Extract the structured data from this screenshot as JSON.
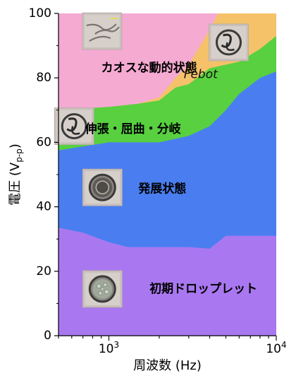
{
  "chart_data": {
    "type": "area",
    "xlabel": "周波数 (Hz)",
    "ylabel_main": "電圧 (V",
    "ylabel_sub": "p-p",
    "ylabel_close": ")",
    "xscale": "log",
    "xlim": [
      500,
      10000
    ],
    "ylim": [
      0,
      100
    ],
    "yticks": [
      0,
      20,
      40,
      60,
      80,
      100
    ],
    "xtick_labels": [
      {
        "value": 1000,
        "base": "10",
        "exp": "3"
      },
      {
        "value": 10000,
        "base": "10",
        "exp": "4"
      }
    ],
    "regions": [
      {
        "name": "初期ドロップレット",
        "color": "#a978f0",
        "label_at": [
          1750,
          14.5
        ],
        "upper": [
          [
            500,
            33.5
          ],
          [
            700,
            32
          ],
          [
            1000,
            29
          ],
          [
            1300,
            27.5
          ],
          [
            2000,
            27.5
          ],
          [
            3000,
            27.5
          ],
          [
            4000,
            27
          ],
          [
            5000,
            31
          ],
          [
            7000,
            31
          ],
          [
            10000,
            31
          ]
        ]
      },
      {
        "name": "発展状態",
        "color": "#4a7ef0",
        "label_at": [
          1500,
          45.5
        ],
        "upper": [
          [
            500,
            57.5
          ],
          [
            1000,
            60
          ],
          [
            1500,
            60
          ],
          [
            2000,
            60
          ],
          [
            3000,
            62
          ],
          [
            4000,
            65
          ],
          [
            5000,
            70
          ],
          [
            6000,
            75
          ],
          [
            8000,
            80
          ],
          [
            10000,
            82
          ]
        ]
      },
      {
        "name": "伸張・屈曲・分岐",
        "color": "#58d040",
        "label_at": [
          720,
          64
        ],
        "upper": [
          [
            500,
            70
          ],
          [
            1000,
            71
          ],
          [
            1500,
            72
          ],
          [
            2000,
            73
          ],
          [
            2500,
            77
          ],
          [
            3000,
            78
          ],
          [
            4000,
            83
          ],
          [
            6000,
            85
          ],
          [
            8000,
            89
          ],
          [
            10000,
            93
          ]
        ]
      },
      {
        "name": "Febot",
        "color": "#f5c26a",
        "label_at": [
          2800,
          81
        ],
        "upper": [
          [
            500,
            70
          ],
          [
            1000,
            71
          ],
          [
            1500,
            72
          ],
          [
            2000,
            74
          ],
          [
            2500,
            80
          ],
          [
            3000,
            84
          ],
          [
            4000,
            95
          ],
          [
            4500,
            100
          ],
          [
            10000,
            100
          ]
        ]
      },
      {
        "name": "カオスな動的状態",
        "color": "#f5aad2",
        "label_at": [
          900,
          83
        ],
        "upper": [
          [
            500,
            100
          ],
          [
            10000,
            100
          ]
        ]
      }
    ]
  },
  "thumbnails": [
    {
      "name": "chaotic-dynamics-micrograph",
      "at": [
        910,
        94.5
      ],
      "type": "filament"
    },
    {
      "name": "febot-micrograph",
      "at": [
        5200,
        91
      ],
      "type": "spiral"
    },
    {
      "name": "stretching-micrograph",
      "at": [
        620,
        65
      ],
      "type": "spiral"
    },
    {
      "name": "developing-micrograph",
      "at": [
        915,
        46
      ],
      "type": "droplet"
    },
    {
      "name": "initial-droplet-micrograph",
      "at": [
        915,
        14.5
      ],
      "type": "droplet-bubbly"
    }
  ]
}
